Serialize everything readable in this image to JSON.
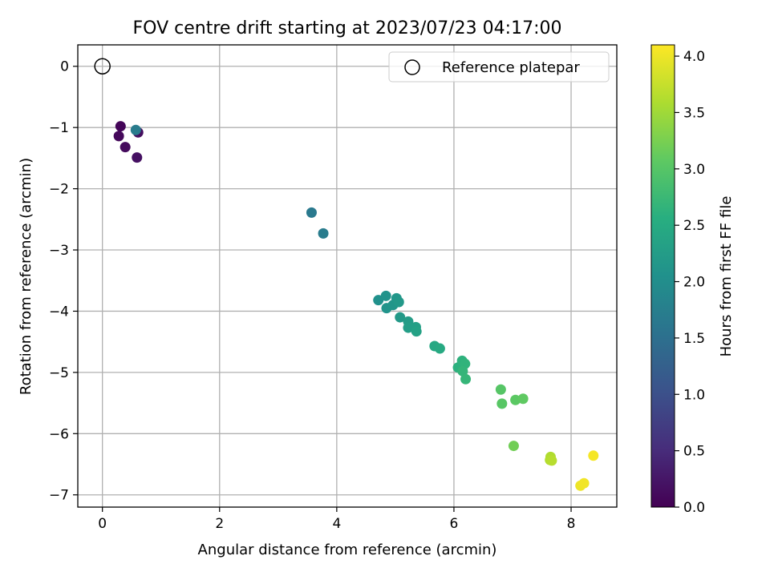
{
  "chart_data": {
    "type": "scatter",
    "title": "FOV centre drift starting at 2023/07/23 04:17:00",
    "xlabel": "Angular distance from reference (arcmin)",
    "ylabel": "Rotation from reference (arcmin)",
    "xlim": [
      -0.42,
      8.78
    ],
    "ylim": [
      -7.2,
      0.35
    ],
    "xticks": [
      0,
      2,
      4,
      6,
      8
    ],
    "yticks": [
      0,
      -1,
      -2,
      -3,
      -4,
      -5,
      -6,
      -7
    ],
    "grid": true,
    "legend": {
      "placement": "top-right",
      "entries": [
        "Reference platepar"
      ]
    },
    "reference_point": {
      "x": 0,
      "y": 0
    },
    "colorbar": {
      "label": "Hours from first FF file",
      "range": [
        0.0,
        4.1
      ],
      "ticks": [
        "0.0",
        "0.5",
        "1.0",
        "1.5",
        "2.0",
        "2.5",
        "3.0",
        "3.5",
        "4.0"
      ],
      "colormap": "viridis"
    },
    "points": [
      {
        "x": 0.31,
        "y": -0.98,
        "c": 0.05
      },
      {
        "x": 0.28,
        "y": -1.14,
        "c": 0.08
      },
      {
        "x": 0.39,
        "y": -1.32,
        "c": 0.12
      },
      {
        "x": 0.61,
        "y": -1.08,
        "c": 0.15
      },
      {
        "x": 0.59,
        "y": -1.49,
        "c": 0.18
      },
      {
        "x": 0.57,
        "y": -1.04,
        "c": 1.7
      },
      {
        "x": 3.57,
        "y": -2.39,
        "c": 1.65
      },
      {
        "x": 3.77,
        "y": -2.73,
        "c": 1.7
      },
      {
        "x": 4.71,
        "y": -3.82,
        "c": 2.05
      },
      {
        "x": 4.84,
        "y": -3.75,
        "c": 2.08
      },
      {
        "x": 4.85,
        "y": -3.95,
        "c": 2.1
      },
      {
        "x": 4.96,
        "y": -3.9,
        "c": 2.12
      },
      {
        "x": 5.02,
        "y": -3.79,
        "c": 2.15
      },
      {
        "x": 5.06,
        "y": -3.85,
        "c": 2.18
      },
      {
        "x": 5.08,
        "y": -4.1,
        "c": 2.2
      },
      {
        "x": 5.22,
        "y": -4.17,
        "c": 2.25
      },
      {
        "x": 5.22,
        "y": -4.27,
        "c": 2.28
      },
      {
        "x": 5.35,
        "y": -4.26,
        "c": 2.3
      },
      {
        "x": 5.36,
        "y": -4.33,
        "c": 2.33
      },
      {
        "x": 5.67,
        "y": -4.57,
        "c": 2.45
      },
      {
        "x": 5.76,
        "y": -4.61,
        "c": 2.48
      },
      {
        "x": 6.07,
        "y": -4.92,
        "c": 2.6
      },
      {
        "x": 6.14,
        "y": -4.81,
        "c": 2.62
      },
      {
        "x": 6.19,
        "y": -4.86,
        "c": 2.65
      },
      {
        "x": 6.15,
        "y": -4.98,
        "c": 2.68
      },
      {
        "x": 6.2,
        "y": -5.11,
        "c": 2.7
      },
      {
        "x": 6.8,
        "y": -5.28,
        "c": 3.0
      },
      {
        "x": 6.82,
        "y": -5.51,
        "c": 3.02
      },
      {
        "x": 7.05,
        "y": -5.45,
        "c": 3.05
      },
      {
        "x": 7.18,
        "y": -5.43,
        "c": 3.08
      },
      {
        "x": 7.02,
        "y": -6.2,
        "c": 3.2
      },
      {
        "x": 7.65,
        "y": -6.38,
        "c": 3.6
      },
      {
        "x": 7.64,
        "y": -6.43,
        "c": 3.62
      },
      {
        "x": 7.67,
        "y": -6.44,
        "c": 3.65
      },
      {
        "x": 8.38,
        "y": -6.36,
        "c": 4.05
      },
      {
        "x": 8.16,
        "y": -6.85,
        "c": 4.0
      },
      {
        "x": 8.22,
        "y": -6.81,
        "c": 4.02
      }
    ]
  }
}
